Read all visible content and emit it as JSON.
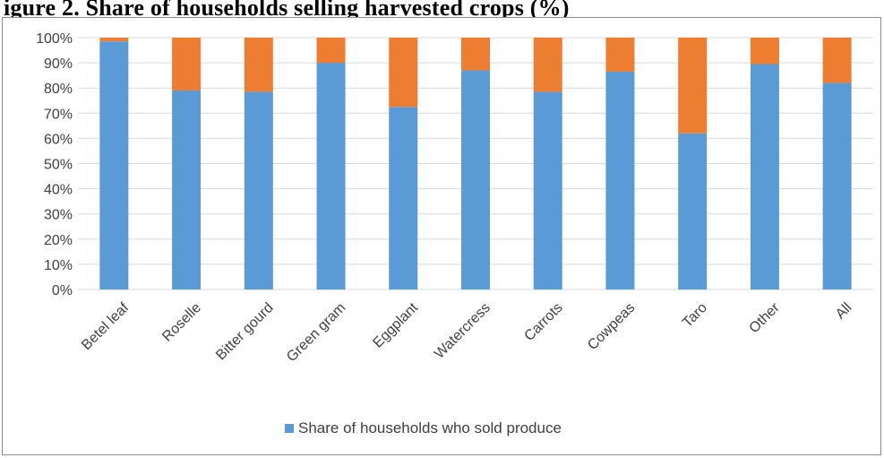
{
  "page": {
    "title_text": "igure 2. Share of households selling harvested crops (%)"
  },
  "colors": {
    "sold": "#5b9bd5",
    "not_sold": "#ed7d31",
    "grid": "#d9d9d9",
    "axis_text": "#404040"
  },
  "chart_data": {
    "type": "bar",
    "stacked": true,
    "percent_stacked": true,
    "categories": [
      "Betel leaf",
      "Roselle",
      "Bitter gourd",
      "Green gram",
      "Eggplant",
      "Watercress",
      "Carrots",
      "Cowpeas",
      "Taro",
      "Other",
      "All"
    ],
    "series": [
      {
        "name": "Share of households who sold produce",
        "values": [
          98.5,
          79,
          78.5,
          90,
          72.5,
          87,
          78.5,
          86.5,
          62,
          89.5,
          82
        ],
        "color": "#5b9bd5"
      },
      {
        "values": [
          1.5,
          21,
          21.5,
          10,
          27.5,
          13,
          21.5,
          13.5,
          38,
          10.5,
          18
        ],
        "color": "#ed7d31"
      }
    ],
    "ylim": [
      0,
      100
    ],
    "yticks": [
      "0%",
      "10%",
      "20%",
      "30%",
      "40%",
      "50%",
      "60%",
      "70%",
      "80%",
      "90%",
      "100%"
    ],
    "grid": true,
    "legend_position": "bottom",
    "legend_entries": [
      "Share of households who sold produce"
    ],
    "x_label_rotation": "-45"
  }
}
